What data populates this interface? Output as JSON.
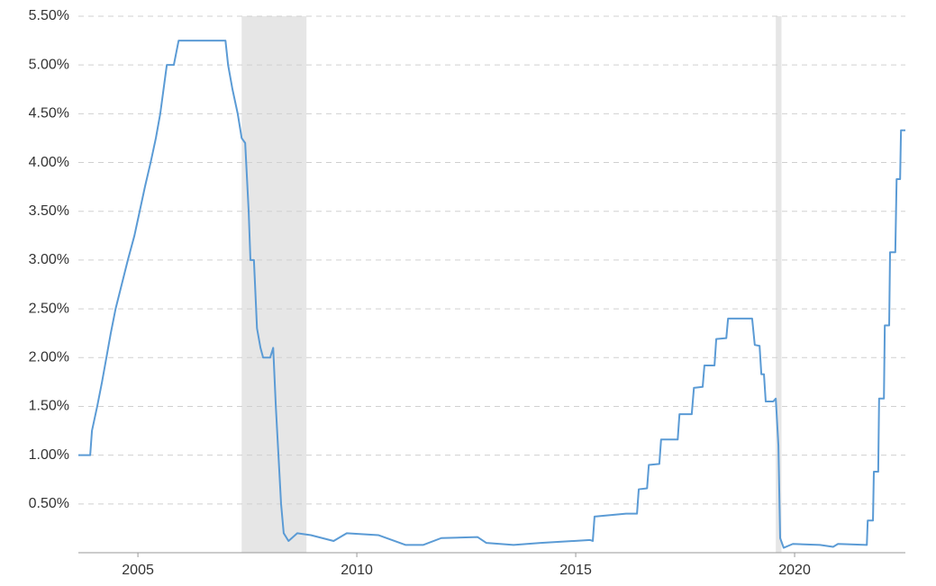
{
  "chart_data": {
    "type": "line",
    "x": [
      2003.64,
      2003.91,
      2003.95,
      2004.07,
      2004.18,
      2004.28,
      2004.38,
      2004.49,
      2004.63,
      2004.77,
      2004.92,
      2005.04,
      2005.16,
      2005.29,
      2005.41,
      2005.51,
      2005.66,
      2005.82,
      2005.93,
      2007.0,
      2007.06,
      2007.16,
      2007.28,
      2007.37,
      2007.45,
      2007.53,
      2007.57,
      2007.65,
      2007.72,
      2007.8,
      2007.86,
      2008.02,
      2008.09,
      2008.15,
      2008.21,
      2008.27,
      2008.33,
      2008.44,
      2008.64,
      2008.95,
      2009.47,
      2009.77,
      2010.49,
      2011.11,
      2011.52,
      2011.93,
      2012.76,
      2012.96,
      2013.58,
      2014.2,
      2015.33,
      2015.39,
      2015.43,
      2016.15,
      2016.4,
      2016.44,
      2016.63,
      2016.67,
      2016.91,
      2016.95,
      2017.33,
      2017.37,
      2017.65,
      2017.7,
      2017.9,
      2017.94,
      2018.17,
      2018.21,
      2018.44,
      2018.48,
      2019.03,
      2019.09,
      2019.2,
      2019.24,
      2019.3,
      2019.34,
      2019.51,
      2019.57,
      2019.63,
      2019.67,
      2019.75,
      2019.96,
      2020.58,
      2020.88,
      2020.99,
      2021.65,
      2021.67,
      2021.79,
      2021.81,
      2021.91,
      2021.93,
      2022.04,
      2022.06,
      2022.16,
      2022.18,
      2022.3,
      2022.33,
      2022.41,
      2022.43,
      2022.53
    ],
    "series": [
      {
        "color": "#5b9bd5",
        "values": [
          1.0,
          1.0,
          1.25,
          1.5,
          1.75,
          2.0,
          2.25,
          2.5,
          2.75,
          3.0,
          3.25,
          3.5,
          3.75,
          4.0,
          4.25,
          4.5,
          5.0,
          5.0,
          5.25,
          5.25,
          5.0,
          4.75,
          4.5,
          4.25,
          4.2,
          3.5,
          3.0,
          3.0,
          2.3,
          2.1,
          2.0,
          2.0,
          2.1,
          1.5,
          1.0,
          0.5,
          0.2,
          0.12,
          0.2,
          0.18,
          0.12,
          0.2,
          0.18,
          0.08,
          0.08,
          0.15,
          0.16,
          0.1,
          0.08,
          0.1,
          0.13,
          0.12,
          0.37,
          0.4,
          0.4,
          0.65,
          0.66,
          0.9,
          0.91,
          1.16,
          1.16,
          1.42,
          1.42,
          1.69,
          1.7,
          1.92,
          1.92,
          2.19,
          2.2,
          2.4,
          2.4,
          2.13,
          2.12,
          1.83,
          1.83,
          1.55,
          1.55,
          1.58,
          1.1,
          0.15,
          0.05,
          0.09,
          0.08,
          0.06,
          0.09,
          0.08,
          0.33,
          0.33,
          0.83,
          0.83,
          1.58,
          1.58,
          2.33,
          2.33,
          3.08,
          3.08,
          3.83,
          3.83,
          4.33,
          4.33
        ]
      }
    ],
    "shaded_regions": [
      [
        2007.37,
        2008.85
      ],
      [
        2019.57,
        2019.7
      ]
    ],
    "shade_color": "#e6e6e6",
    "xlim": [
      2003.64,
      2022.53
    ],
    "xticks": [
      2005,
      2010,
      2015,
      2020
    ],
    "ylim": [
      0,
      5.5
    ],
    "yticks": [
      {
        "value": 0.5,
        "label": "0.50%"
      },
      {
        "value": 1.0,
        "label": "1.00%"
      },
      {
        "value": 1.5,
        "label": "1.50%"
      },
      {
        "value": 2.0,
        "label": "2.00%"
      },
      {
        "value": 2.5,
        "label": "2.50%"
      },
      {
        "value": 3.0,
        "label": "3.00%"
      },
      {
        "value": 3.5,
        "label": "3.50%"
      },
      {
        "value": 4.0,
        "label": "4.00%"
      },
      {
        "value": 4.5,
        "label": "4.50%"
      },
      {
        "value": 5.0,
        "label": "5.00%"
      },
      {
        "value": 5.5,
        "label": "5.50%"
      }
    ],
    "grid": true
  }
}
